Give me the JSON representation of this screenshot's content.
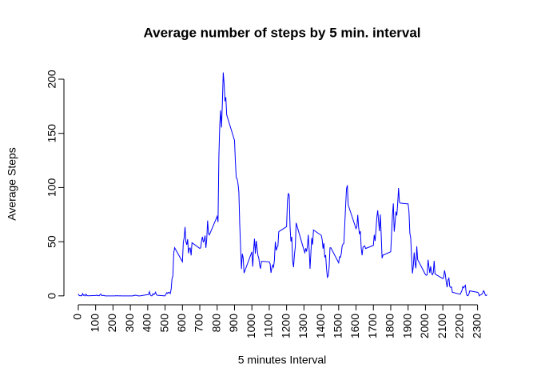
{
  "chart_data": {
    "type": "line",
    "title": "Average number of steps by 5 min. interval",
    "x_label": "5 minutes Interval",
    "y_label": "Average Steps",
    "color": "#0000ff",
    "xlim": [
      -94.2,
      2449.2
    ],
    "ylim": [
      -8.25,
      214.4
    ],
    "xticks": [
      0,
      100,
      200,
      300,
      400,
      500,
      600,
      700,
      800,
      900,
      1000,
      1100,
      1200,
      1300,
      1400,
      1500,
      1600,
      1700,
      1800,
      1900,
      2000,
      2100,
      2200,
      2300
    ],
    "yticks": [
      0,
      50,
      100,
      150,
      200
    ],
    "x": [
      0,
      5,
      10,
      15,
      20,
      25,
      30,
      35,
      40,
      45,
      50,
      55,
      100,
      105,
      110,
      115,
      120,
      125,
      130,
      135,
      140,
      145,
      150,
      155,
      200,
      205,
      210,
      215,
      220,
      225,
      230,
      235,
      240,
      245,
      250,
      255,
      300,
      305,
      310,
      315,
      320,
      325,
      330,
      335,
      340,
      345,
      350,
      355,
      400,
      405,
      410,
      415,
      420,
      425,
      430,
      435,
      440,
      445,
      450,
      455,
      500,
      505,
      510,
      515,
      520,
      525,
      530,
      535,
      540,
      545,
      550,
      555,
      600,
      605,
      610,
      615,
      620,
      625,
      630,
      635,
      640,
      645,
      650,
      655,
      700,
      705,
      710,
      715,
      720,
      725,
      730,
      735,
      740,
      745,
      750,
      755,
      800,
      805,
      810,
      815,
      820,
      825,
      830,
      835,
      840,
      845,
      850,
      855,
      900,
      905,
      910,
      915,
      920,
      925,
      930,
      935,
      940,
      945,
      950,
      955,
      1000,
      1005,
      1010,
      1015,
      1020,
      1025,
      1030,
      1035,
      1040,
      1045,
      1050,
      1055,
      1100,
      1105,
      1110,
      1115,
      1120,
      1125,
      1130,
      1135,
      1140,
      1145,
      1150,
      1155,
      1200,
      1205,
      1210,
      1215,
      1220,
      1225,
      1230,
      1235,
      1240,
      1245,
      1250,
      1255,
      1300,
      1305,
      1310,
      1315,
      1320,
      1325,
      1330,
      1335,
      1340,
      1345,
      1350,
      1355,
      1400,
      1405,
      1410,
      1415,
      1420,
      1425,
      1430,
      1435,
      1440,
      1445,
      1450,
      1455,
      1500,
      1505,
      1510,
      1515,
      1520,
      1525,
      1530,
      1535,
      1540,
      1545,
      1550,
      1555,
      1600,
      1605,
      1610,
      1615,
      1620,
      1625,
      1630,
      1635,
      1640,
      1645,
      1650,
      1655,
      1700,
      1705,
      1710,
      1715,
      1720,
      1725,
      1730,
      1735,
      1740,
      1745,
      1750,
      1755,
      1800,
      1805,
      1810,
      1815,
      1820,
      1825,
      1830,
      1835,
      1840,
      1845,
      1850,
      1855,
      1900,
      1905,
      1910,
      1915,
      1920,
      1925,
      1930,
      1935,
      1940,
      1945,
      1950,
      1955,
      2000,
      2005,
      2010,
      2015,
      2020,
      2025,
      2030,
      2035,
      2040,
      2045,
      2050,
      2055,
      2100,
      2105,
      2110,
      2115,
      2120,
      2125,
      2130,
      2135,
      2140,
      2145,
      2150,
      2155,
      2200,
      2205,
      2210,
      2215,
      2220,
      2225,
      2230,
      2235,
      2240,
      2245,
      2250,
      2255,
      2300,
      2305,
      2310,
      2315,
      2320,
      2325,
      2330,
      2335,
      2340,
      2345,
      2350,
      2355
    ],
    "values": [
      1.7,
      0.3,
      0.1,
      0.2,
      0.1,
      2.1,
      0.5,
      0.9,
      0,
      1.5,
      0.3,
      0.1,
      0.3,
      0.7,
      0.2,
      0.3,
      0,
      1.1,
      1.8,
      0.2,
      0.2,
      0.4,
      0.3,
      0,
      0,
      0,
      0,
      0.1,
      0,
      0.2,
      0,
      0,
      0.1,
      0,
      0,
      0,
      0,
      0,
      0,
      0,
      0.5,
      0.3,
      0.7,
      0.4,
      0.3,
      0,
      0,
      0,
      1.2,
      1.2,
      3.9,
      0.9,
      0.1,
      0.1,
      2,
      1.2,
      1.8,
      3.4,
      1.2,
      0.5,
      0,
      1.6,
      3,
      2.2,
      3.3,
      3,
      2.1,
      6.1,
      16,
      18.3,
      39.5,
      44.5,
      31.5,
      49.3,
      53.8,
      63.5,
      50,
      47.1,
      52.2,
      39.3,
      44,
      44.2,
      37.4,
      49,
      43.8,
      44.4,
      50.5,
      54.5,
      49.9,
      50.9,
      55.7,
      44.3,
      52.3,
      69.5,
      57.8,
      56.2,
      73.4,
      68.2,
      129.4,
      157.5,
      171.2,
      155.4,
      177.3,
      206.2,
      195.9,
      179.6,
      183.4,
      167,
      143.5,
      124,
      109.1,
      108.1,
      103.7,
      95.9,
      66.2,
      45.2,
      24.8,
      38.8,
      35,
      21.1,
      40.6,
      27,
      42.4,
      52.7,
      38.9,
      50.8,
      44.3,
      37.4,
      34.7,
      28.3,
      25.1,
      31.9,
      31.4,
      29.7,
      21.3,
      25.5,
      28.4,
      26.5,
      33.4,
      50,
      42,
      44.6,
      46,
      59.3,
      63.9,
      87.6,
      94.8,
      92.8,
      63.4,
      50.2,
      54.5,
      32.4,
      26.5,
      37.7,
      45,
      67.3,
      42.3,
      39.9,
      43.9,
      40.9,
      46.1,
      56.3,
      42.8,
      25,
      40,
      53.5,
      47.3,
      60.8,
      55.8,
      51.9,
      43.6,
      48.7,
      35.5,
      37.6,
      25.1,
      17.1,
      18.5,
      26.2,
      44.3,
      44.4,
      30.5,
      36.1,
      35.5,
      38.8,
      46,
      47.8,
      48.4,
      65.3,
      82.9,
      98.7,
      102.1,
      83.9,
      62.1,
      64.1,
      74.7,
      63.2,
      56.9,
      59.8,
      43.9,
      37.5,
      44.9,
      45.5,
      46.2,
      43.7,
      46.6,
      56.3,
      50.7,
      61.2,
      72.7,
      78.9,
      68.9,
      59.7,
      75.1,
      56.5,
      34.8,
      37.5,
      40.7,
      58,
      74.7,
      85.3,
      59.3,
      67.8,
      77.7,
      74.2,
      85.3,
      99.5,
      86.6,
      85.6,
      84.9,
      77.8,
      58,
      53.4,
      36.3,
      20.7,
      27.4,
      40,
      30.2,
      25.5,
      45.7,
      33.5,
      19.6,
      19,
      19.3,
      33.3,
      26.8,
      21.2,
      27.3,
      21.3,
      19.5,
      21.3,
      32.3,
      20.2,
      15.9,
      17.2,
      23.5,
      19.2,
      12.5,
      8,
      14.7,
      16.3,
      8.7,
      7.8,
      8.1,
      3.3,
      1.5,
      3.1,
      4.8,
      8.5,
      7.4,
      8.7,
      9.8,
      2.2,
      0.3,
      0.1,
      1.6,
      4.6,
      3.3,
      2.8,
      0,
      0.8,
      1,
      1.6,
      2.6,
      4.7,
      3.3,
      0.6,
      0.2,
      1.1
    ]
  }
}
